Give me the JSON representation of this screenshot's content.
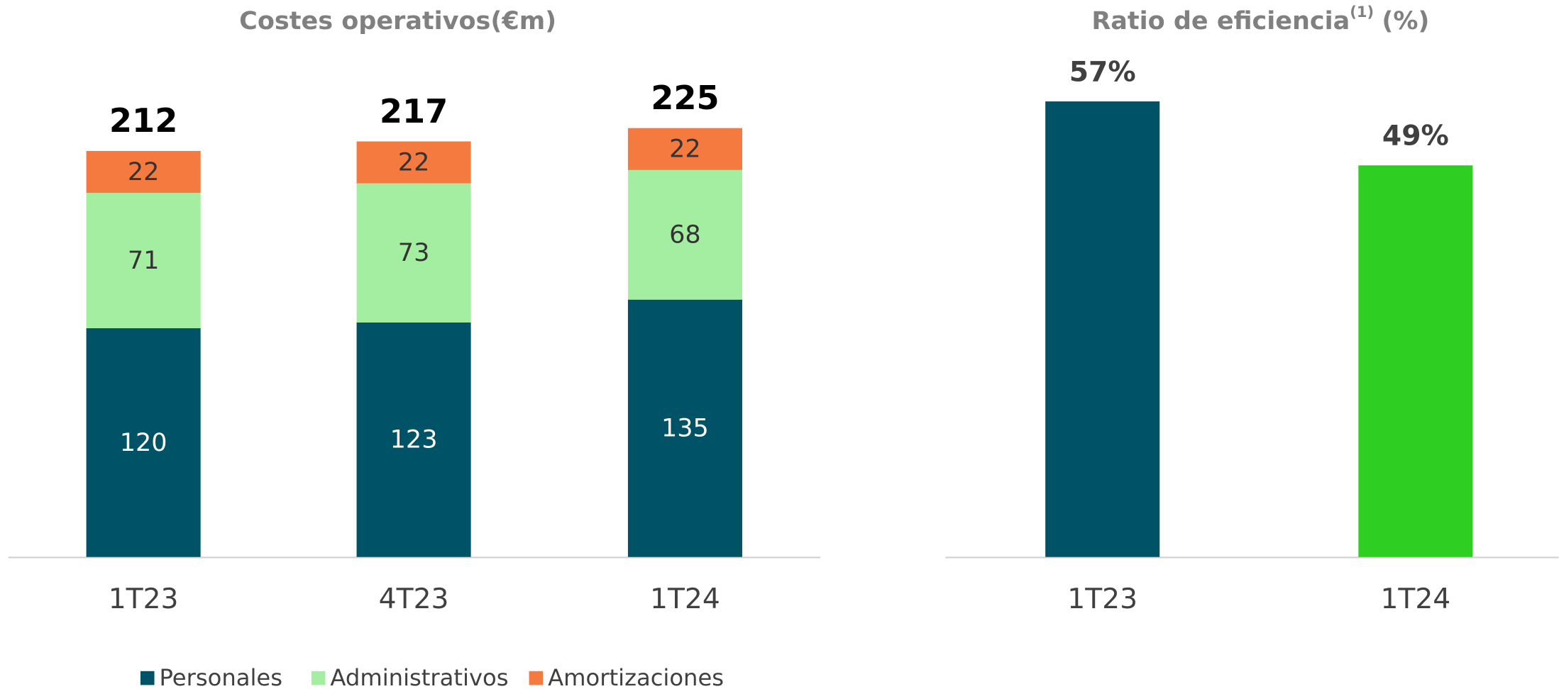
{
  "chart_data": [
    {
      "type": "stacked_bar",
      "title": "Costes operativos(€m)",
      "categories": [
        "1T23",
        "4T23",
        "1T24"
      ],
      "series": [
        {
          "name": "Personales",
          "color": "#005266",
          "values": [
            120,
            123,
            135
          ]
        },
        {
          "name": "Administrativos",
          "color": "#a3eea0",
          "values": [
            71,
            73,
            68
          ]
        },
        {
          "name": "Amortizaciones",
          "color": "#f47a40",
          "values": [
            22,
            22,
            22
          ]
        }
      ],
      "totals": [
        212,
        217,
        225
      ]
    },
    {
      "type": "bar",
      "title": "Ratio de eficiencia",
      "title_superscript": "(1)",
      "title_suffix": "(%)",
      "categories": [
        "1T23",
        "1T24"
      ],
      "values": [
        57,
        49
      ],
      "value_labels": [
        "57%",
        "49%"
      ],
      "colors": [
        "#005266",
        "#2ecf22"
      ]
    }
  ]
}
